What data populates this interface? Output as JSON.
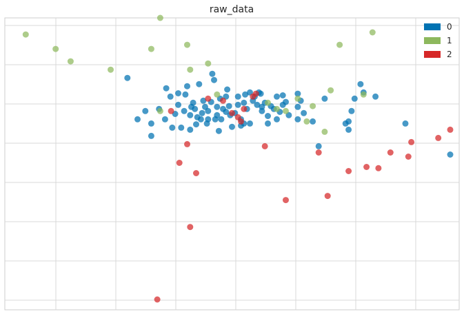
{
  "chart_data": {
    "type": "scatter",
    "title": "raw_data",
    "xlabel": "",
    "ylabel": "",
    "xlim": [
      -3.4,
      4.2
    ],
    "ylim": [
      -4.3,
      2.75
    ],
    "grid": true,
    "legend_position": "top-right",
    "series": [
      {
        "name": "0",
        "color": "#0072B2",
        "points": [
          [
            -1.35,
            1.3
          ],
          [
            -1.18,
            0.3
          ],
          [
            -1.05,
            0.5
          ],
          [
            -0.95,
            0.2
          ],
          [
            -0.82,
            0.55
          ],
          [
            -0.72,
            0.3
          ],
          [
            -0.7,
            1.05
          ],
          [
            -0.63,
            0.85
          ],
          [
            -0.55,
            0.43
          ],
          [
            -0.5,
            0.65
          ],
          [
            -0.5,
            0.93
          ],
          [
            -0.45,
            0.1
          ],
          [
            -0.38,
            0.9
          ],
          [
            -0.35,
            1.1
          ],
          [
            -0.3,
            0.4
          ],
          [
            -0.28,
            0.6
          ],
          [
            -0.25,
            0.7
          ],
          [
            -0.22,
            0.55
          ],
          [
            -0.18,
            0.35
          ],
          [
            -0.15,
            1.15
          ],
          [
            -0.12,
            0.3
          ],
          [
            -0.1,
            0.45
          ],
          [
            -0.08,
            0.75
          ],
          [
            -0.05,
            0.6
          ],
          [
            -0.02,
            0.2
          ],
          [
            0.0,
            0.5
          ],
          [
            0.05,
            0.72
          ],
          [
            0.07,
            1.4
          ],
          [
            0.1,
            1.25
          ],
          [
            0.12,
            0.3
          ],
          [
            0.15,
            0.6
          ],
          [
            0.15,
            0.4
          ],
          [
            0.2,
            0.8
          ],
          [
            0.22,
            0.3
          ],
          [
            0.25,
            0.55
          ],
          [
            0.3,
            0.85
          ],
          [
            0.32,
            1.02
          ],
          [
            0.35,
            0.62
          ],
          [
            0.37,
            0.4
          ],
          [
            0.4,
            0.12
          ],
          [
            0.45,
            0.45
          ],
          [
            0.5,
            0.85
          ],
          [
            0.5,
            0.65
          ],
          [
            0.55,
            0.3
          ],
          [
            0.6,
            0.7
          ],
          [
            0.62,
            0.9
          ],
          [
            0.65,
            0.55
          ],
          [
            0.7,
            0.2
          ],
          [
            0.75,
            0.75
          ],
          [
            0.78,
            0.85
          ],
          [
            0.82,
            0.65
          ],
          [
            0.85,
            0.95
          ],
          [
            0.88,
            0.92
          ],
          [
            0.9,
            0.6
          ],
          [
            0.95,
            0.7
          ],
          [
            1.0,
            0.2
          ],
          [
            1.05,
            0.62
          ],
          [
            1.1,
            0.55
          ],
          [
            1.15,
            0.85
          ],
          [
            1.2,
            0.48
          ],
          [
            1.25,
            0.65
          ],
          [
            1.3,
            0.72
          ],
          [
            1.35,
            0.4
          ],
          [
            1.5,
            0.3
          ],
          [
            1.5,
            0.6
          ],
          [
            1.5,
            0.92
          ],
          [
            1.55,
            0.75
          ],
          [
            1.6,
            0.45
          ],
          [
            1.75,
            0.25
          ],
          [
            1.85,
            -0.35
          ],
          [
            2.3,
            0.2
          ],
          [
            2.35,
            0.05
          ],
          [
            2.35,
            0.25
          ],
          [
            2.4,
            0.5
          ],
          [
            2.45,
            0.8
          ],
          [
            2.55,
            1.15
          ],
          [
            2.6,
            0.95
          ],
          [
            2.8,
            0.85
          ],
          [
            3.3,
            0.2
          ],
          [
            4.05,
            -0.55
          ],
          [
            1.95,
            0.8
          ],
          [
            0.7,
            0.95
          ],
          [
            -0.4,
            0.5
          ],
          [
            -0.6,
            0.1
          ],
          [
            0.3,
            0.48
          ],
          [
            0.55,
            0.15
          ],
          [
            1.15,
            0.3
          ],
          [
            -0.2,
            0.18
          ],
          [
            0.9,
            0.5
          ],
          [
            0.0,
            0.3
          ],
          [
            0.18,
            0.02
          ],
          [
            -0.3,
            0.05
          ],
          [
            0.6,
            0.2
          ],
          [
            1.0,
            0.38
          ],
          [
            1.25,
            0.88
          ],
          [
            -0.95,
            -0.1
          ]
        ]
      },
      {
        "name": "1",
        "color": "#8DB85D",
        "points": [
          [
            -3.05,
            2.35
          ],
          [
            -2.55,
            2.0
          ],
          [
            -2.3,
            1.7
          ],
          [
            -1.63,
            1.5
          ],
          [
            -0.95,
            2.0
          ],
          [
            -0.8,
            2.75
          ],
          [
            -0.35,
            2.1
          ],
          [
            0.0,
            1.65
          ],
          [
            0.15,
            0.9
          ],
          [
            1.0,
            0.7
          ],
          [
            1.15,
            0.55
          ],
          [
            1.5,
            0.8
          ],
          [
            1.65,
            0.25
          ],
          [
            1.75,
            0.62
          ],
          [
            1.95,
            0.0
          ],
          [
            2.05,
            1.0
          ],
          [
            2.2,
            2.1
          ],
          [
            2.6,
            0.9
          ],
          [
            2.75,
            2.4
          ],
          [
            -0.3,
            1.5
          ],
          [
            -0.8,
            0.5
          ],
          [
            1.3,
            0.5
          ]
        ]
      },
      {
        "name": "2",
        "color": "#D62728",
        "points": [
          [
            -0.62,
            0.5
          ],
          [
            -0.48,
            -0.75
          ],
          [
            -0.35,
            -0.3
          ],
          [
            -0.2,
            -1.0
          ],
          [
            0.0,
            0.8
          ],
          [
            0.25,
            0.75
          ],
          [
            0.4,
            0.45
          ],
          [
            0.5,
            0.35
          ],
          [
            0.55,
            0.25
          ],
          [
            0.6,
            0.55
          ],
          [
            0.75,
            0.85
          ],
          [
            0.8,
            0.92
          ],
          [
            0.95,
            -0.35
          ],
          [
            1.3,
            -1.65
          ],
          [
            1.85,
            -0.5
          ],
          [
            2.0,
            -1.55
          ],
          [
            2.35,
            -0.95
          ],
          [
            2.65,
            -0.85
          ],
          [
            2.85,
            -0.88
          ],
          [
            3.05,
            -0.5
          ],
          [
            3.35,
            -0.6
          ],
          [
            3.4,
            -0.25
          ],
          [
            3.85,
            -0.15
          ],
          [
            4.05,
            0.05
          ],
          [
            -0.3,
            -2.3
          ],
          [
            -0.85,
            -4.05
          ]
        ]
      }
    ]
  }
}
